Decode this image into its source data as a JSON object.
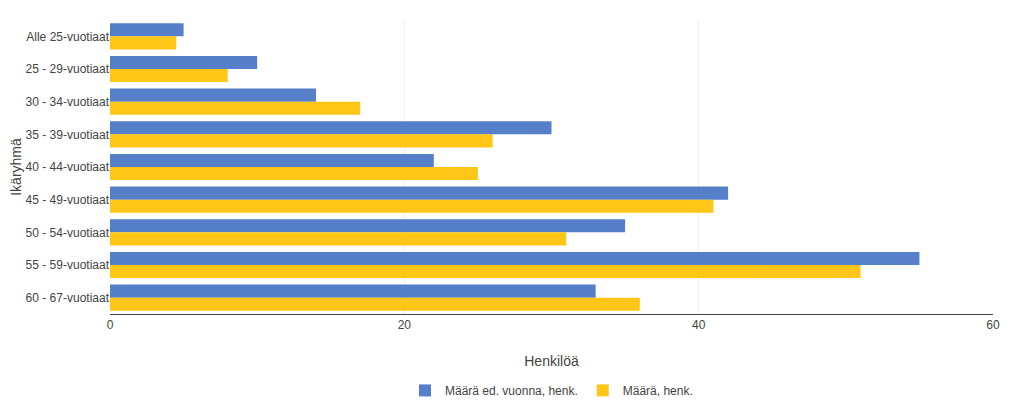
{
  "chart_data": {
    "type": "bar",
    "orientation": "horizontal",
    "categories": [
      "Alle 25-vuotiaat",
      "25 - 29-vuotiaat",
      "30 - 34-vuotiaat",
      "35 - 39-vuotiaat",
      "40 - 44-vuotiaat",
      "45 - 49-vuotiaat",
      "50 - 54-vuotiaat",
      "55 - 59-vuotiaat",
      "60 - 67-vuotiaat"
    ],
    "series": [
      {
        "name": "Määrä ed. vuonna, henk.",
        "color": "#4472C4",
        "values": [
          5,
          10,
          14,
          30,
          22,
          42,
          35,
          55,
          33
        ]
      },
      {
        "name": "Määrä, henk.",
        "color": "#FFC000",
        "values": [
          4.5,
          8,
          17,
          26,
          25,
          41,
          31,
          51,
          36
        ]
      }
    ],
    "xlabel": "Henkilöä",
    "ylabel": "Ikäryhmä",
    "xlim": [
      0,
      60
    ],
    "xticks": [
      0,
      20,
      40,
      60
    ],
    "grid": true,
    "legend": "bottom"
  }
}
